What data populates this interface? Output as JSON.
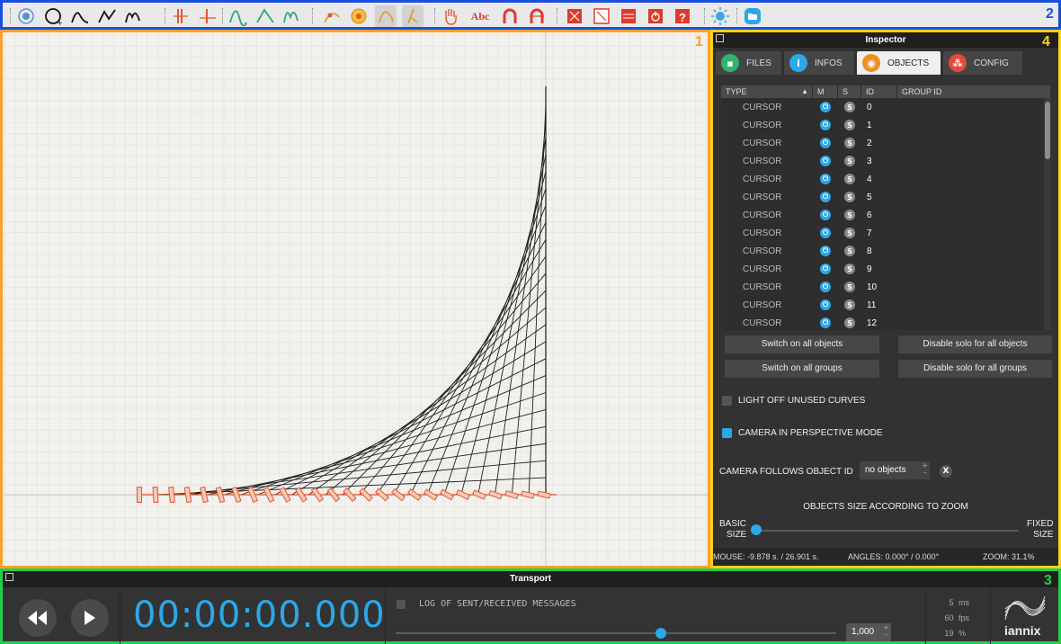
{
  "toolbar": {
    "region_number": "2",
    "groups": [
      [
        "cursor-add-icon",
        "circle-add-icon",
        "curve-add-icon",
        "polyline-add-icon",
        "function-curve-icon"
      ],
      [
        "trigger-add-icon",
        "trigger-line-icon"
      ],
      [
        "curve-green-icon",
        "polyline-green-icon",
        "function-green-icon"
      ],
      [
        "snap-curve-icon",
        "snap-grid-icon",
        "curve-edit-icon",
        "curve-edit-pressed-icon"
      ],
      [
        "hand-tool-icon",
        "text-tool-icon",
        "magnet-icon",
        "magnet-off-icon"
      ],
      [
        "fullscreen-icon",
        "minimize-view-icon",
        "score-icon",
        "power-icon",
        "help-icon"
      ],
      [
        "sun-icon"
      ],
      [
        "folder-icon"
      ]
    ],
    "text_button_label": "Abc"
  },
  "canvas": {
    "region_number": "1"
  },
  "inspector": {
    "region_number": "4",
    "title": "Inspector",
    "tabs": [
      {
        "label": "FILES",
        "icon": "folder-icon",
        "color": "#2fb56b"
      },
      {
        "label": "INFOS",
        "icon": "info-icon",
        "color": "#2da7e6"
      },
      {
        "label": "OBJECTS",
        "icon": "eye-icon",
        "color": "#ef8f1f"
      },
      {
        "label": "CONFIG",
        "icon": "network-icon",
        "color": "#e24a3b"
      }
    ],
    "columns": [
      "TYPE",
      "M",
      "S",
      "ID",
      "GROUP ID"
    ],
    "rows": [
      {
        "type": "CURSOR",
        "id": "0"
      },
      {
        "type": "CURSOR",
        "id": "1"
      },
      {
        "type": "CURSOR",
        "id": "2"
      },
      {
        "type": "CURSOR",
        "id": "3"
      },
      {
        "type": "CURSOR",
        "id": "4"
      },
      {
        "type": "CURSOR",
        "id": "5"
      },
      {
        "type": "CURSOR",
        "id": "6"
      },
      {
        "type": "CURSOR",
        "id": "7"
      },
      {
        "type": "CURSOR",
        "id": "8"
      },
      {
        "type": "CURSOR",
        "id": "9"
      },
      {
        "type": "CURSOR",
        "id": "10"
      },
      {
        "type": "CURSOR",
        "id": "11"
      },
      {
        "type": "CURSOR",
        "id": "12"
      }
    ],
    "power_glyph": "⏻",
    "solo_glyph": "S",
    "buttons": {
      "switch_on_objects": "Switch on all objects",
      "disable_solo_objects": "Disable solo for all objects",
      "switch_on_groups": "Switch on all groups",
      "disable_solo_groups": "Disable solo for all groups"
    },
    "light_off_label": "LIGHT OFF UNUSED CURVES",
    "light_off_checked": false,
    "perspective_label": "CAMERA IN PERSPECTIVE MODE",
    "perspective_checked": true,
    "camera_follow_label": "CAMERA FOLLOWS OBJECT ID",
    "camera_follow_value": "no objects",
    "clear_label": "X",
    "size_title": "OBJECTS SIZE ACCORDING TO ZOOM",
    "size_min_label_1": "BASIC",
    "size_min_label_2": "SIZE",
    "size_max_label_1": "FIXED",
    "size_max_label_2": "SIZE",
    "size_slider_value": 0.0,
    "status": {
      "mouse": "MOUSE: -9.878 s. / 26.901 s.",
      "angles": "ANGLES: 0.000° / 0.000°",
      "zoom": "ZOOM: 31.1%"
    }
  },
  "transport": {
    "region_number": "3",
    "title": "Transport",
    "time": "00:00:00.000",
    "log_label": "LOG OF SENT/RECEIVED MESSAGES",
    "log_checked": false,
    "speed_value": "1,000",
    "speed_slider_fraction": 0.5,
    "stats": [
      {
        "value": "5",
        "unit": "ms"
      },
      {
        "value": "60",
        "unit": "fps"
      },
      {
        "value": "19",
        "unit": "%"
      }
    ],
    "logo_text": "iannix",
    "colors": {
      "accent": "#2da7e6",
      "cursor": "#e8562a"
    }
  }
}
